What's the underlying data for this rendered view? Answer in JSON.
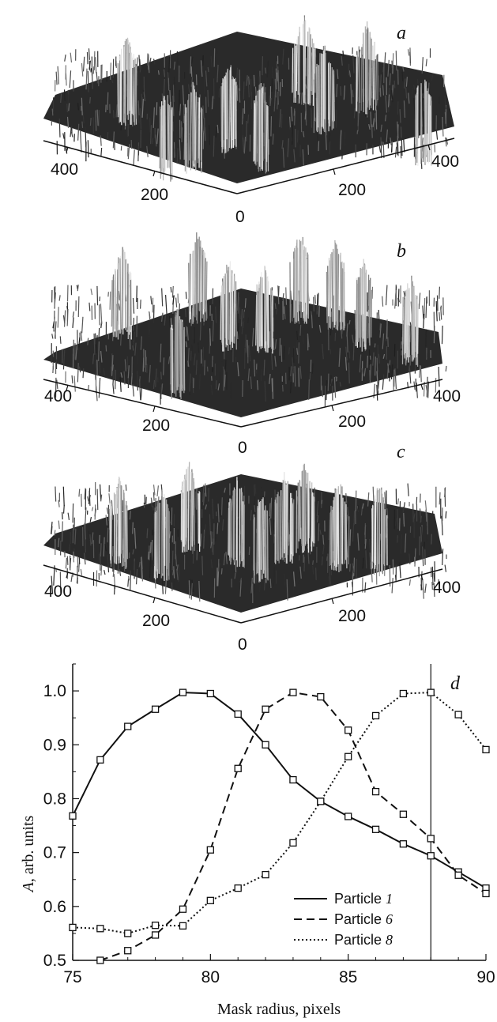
{
  "surface_panels": [
    {
      "label": "a",
      "left_ticks": [
        "400",
        "200"
      ],
      "right_ticks": [
        "200",
        "400"
      ],
      "origin": "0"
    },
    {
      "label": "b",
      "left_ticks": [
        "400",
        "200"
      ],
      "right_ticks": [
        "200",
        "400"
      ],
      "origin": "0"
    },
    {
      "label": "c",
      "left_ticks": [
        "400",
        "200"
      ],
      "right_ticks": [
        "200",
        "400"
      ],
      "origin": "0"
    }
  ],
  "chart_data": {
    "type": "line",
    "panel_label": "d",
    "xlabel": "Mask radius, pixels",
    "ylabel_italic": "A",
    "ylabel_rest": ", arb. units",
    "xlim": [
      75,
      90
    ],
    "ylim": [
      0.5,
      1.05
    ],
    "xticks": [
      "75",
      "80",
      "85",
      "90"
    ],
    "xtick_values": [
      75,
      80,
      85,
      90
    ],
    "yticks": [
      "0.5",
      "0.6",
      "0.7",
      "0.8",
      "0.9",
      "1.0"
    ],
    "ytick_values": [
      0.5,
      0.6,
      0.7,
      0.8,
      0.9,
      1.0
    ],
    "vertical_marker_x": 88,
    "series": [
      {
        "name_prefix": "Particle ",
        "name_num": "1",
        "dash": "solid",
        "x": [
          75,
          76,
          77,
          78,
          79,
          80,
          81,
          82,
          83,
          84,
          85,
          86,
          87,
          88,
          89,
          90
        ],
        "y": [
          0.768,
          0.872,
          0.934,
          0.966,
          0.997,
          0.995,
          0.957,
          0.9,
          0.835,
          0.795,
          0.767,
          0.743,
          0.716,
          0.694,
          0.664,
          0.634
        ]
      },
      {
        "name_prefix": "Particle ",
        "name_num": "6",
        "dash": "dashed",
        "x": [
          76,
          77,
          78,
          79,
          80,
          81,
          82,
          83,
          84,
          85,
          86,
          87,
          88,
          89,
          90
        ],
        "y": [
          0.5,
          0.518,
          0.547,
          0.595,
          0.705,
          0.856,
          0.966,
          0.997,
          0.989,
          0.927,
          0.813,
          0.771,
          0.726,
          0.658,
          0.624
        ]
      },
      {
        "name_prefix": "Particle ",
        "name_num": "8",
        "dash": "dotted",
        "x": [
          75,
          76,
          77,
          78,
          79,
          80,
          81,
          82,
          83,
          84,
          85,
          86,
          87,
          88,
          89,
          90
        ],
        "y": [
          0.561,
          0.559,
          0.55,
          0.565,
          0.564,
          0.611,
          0.634,
          0.659,
          0.718,
          0.795,
          0.878,
          0.954,
          0.995,
          0.997,
          0.956,
          0.891
        ]
      }
    ]
  }
}
